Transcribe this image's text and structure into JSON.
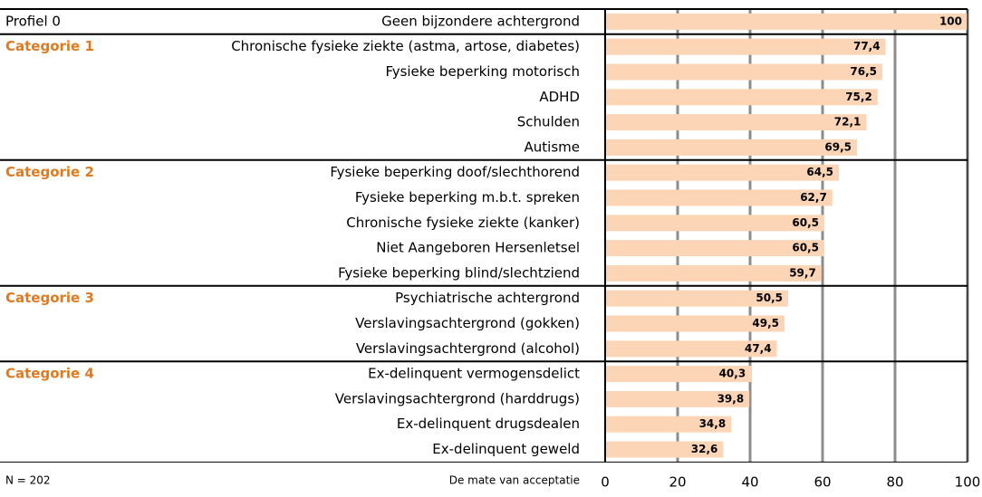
{
  "chart_data": {
    "type": "bar",
    "orientation": "horizontal",
    "groups": [
      {
        "name": "Profiel 0",
        "categories": [
          "Geen bijzondere achtergrond"
        ],
        "values": [
          100
        ],
        "value_labels": [
          "100"
        ]
      },
      {
        "name": "Categorie 1",
        "categories": [
          "Chronische fysieke ziekte (astma, artose, diabetes)",
          "Fysieke beperking motorisch",
          "ADHD",
          "Schulden",
          "Autisme"
        ],
        "values": [
          77.4,
          76.5,
          75.2,
          72.1,
          69.5
        ],
        "value_labels": [
          "77,4",
          "76,5",
          "75,2",
          "72,1",
          "69,5"
        ]
      },
      {
        "name": "Categorie 2",
        "categories": [
          "Fysieke beperking doof/slechthorend",
          "Fysieke beperking m.b.t. spreken",
          "Chronische fysieke ziekte (kanker)",
          "Niet Aangeboren Hersenletsel",
          "Fysieke beperking blind/slechtziend"
        ],
        "values": [
          64.5,
          62.7,
          60.5,
          60.5,
          59.7
        ],
        "value_labels": [
          "64,5",
          "62,7",
          "60,5",
          "60,5",
          "59,7"
        ]
      },
      {
        "name": "Categorie 3",
        "categories": [
          "Psychiatrische achtergrond",
          "Verslavingsachtergrond (gokken)",
          "Verslavingsachtergrond (alcohol)"
        ],
        "values": [
          50.5,
          49.5,
          47.4
        ],
        "value_labels": [
          "50,5",
          "49,5",
          "47,4"
        ]
      },
      {
        "name": "Categorie 4",
        "categories": [
          "Ex-delinquent vermogensdelict",
          "Verslavingsachtergrond (harddrugs)",
          "Ex-delinquent drugsdealen",
          "Ex-delinquent geweld"
        ],
        "values": [
          40.3,
          39.8,
          34.8,
          32.6
        ],
        "value_labels": [
          "40,3",
          "39,8",
          "34,8",
          "32,6"
        ]
      }
    ],
    "color": "#fbd5b5",
    "group_color": "#e07a1f",
    "xlabel": "De mate van acceptatie",
    "note": "N = 202",
    "xlim": [
      0,
      100
    ],
    "xticks": [
      0,
      20,
      40,
      60,
      80,
      100
    ],
    "grid": true
  }
}
